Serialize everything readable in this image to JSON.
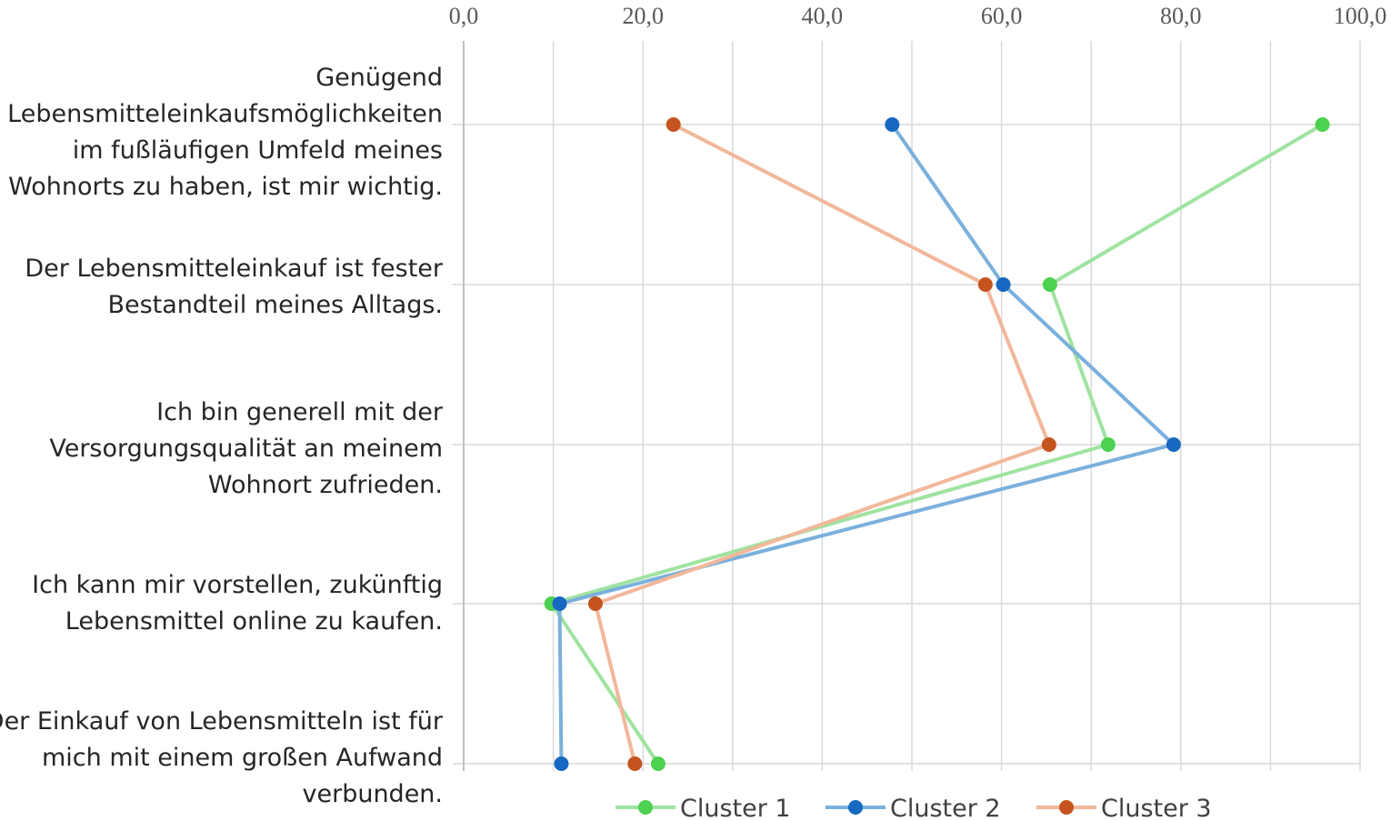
{
  "chart_data": {
    "type": "line",
    "orientation": "horizontal",
    "categories": [
      "Genügend Lebensmitteleinkaufsmöglichkeiten im fußläufigen Umfeld meines Wohnorts zu haben, ist mir wichtig.",
      "Der Lebensmitteleinkauf ist fester Bestandteil meines Alltags.",
      "Ich bin generell mit der Versorgungsqualität an meinem Wohnort zufrieden.",
      "Ich kann mir vorstellen, zukünftig Lebensmittel online zu kaufen.",
      "Der Einkauf von Lebensmitteln ist für mich mit einem großen Aufwand verbunden."
    ],
    "category_lines": [
      [
        "Genügend",
        "Lebensmitteleinkaufsmöglichkeiten",
        "im fußläufigen Umfeld meines",
        "Wohnorts zu haben, ist mir wichtig."
      ],
      [
        "Der Lebensmitteleinkauf ist fester",
        "Bestandteil meines Alltags."
      ],
      [
        "Ich bin generell mit der",
        "Versorgungsqualität an meinem",
        "Wohnort zufrieden."
      ],
      [
        "Ich kann mir vorstellen, zukünftig",
        "Lebensmittel online zu kaufen."
      ],
      [
        "Der Einkauf von Lebensmitteln ist für",
        "mich mit einem großen Aufwand",
        "verbunden."
      ]
    ],
    "series": [
      {
        "name": "Cluster 1",
        "color": "#9fe3a0",
        "marker_color": "#4cd150",
        "values": [
          95.8,
          65.4,
          71.9,
          9.8,
          21.7
        ]
      },
      {
        "name": "Cluster 2",
        "color": "#7ab0dc",
        "marker_color": "#1768c0",
        "values": [
          47.8,
          60.2,
          79.2,
          10.7,
          10.9
        ]
      },
      {
        "name": "Cluster 3",
        "color": "#f2b79a",
        "marker_color": "#c4531e",
        "values": [
          23.4,
          58.2,
          65.3,
          14.7,
          19.1
        ]
      }
    ],
    "xlim": [
      0,
      100
    ],
    "x_ticks": [
      "0,0",
      "20,0",
      "40,0",
      "60,0",
      "80,0",
      "100,0"
    ],
    "x_axis_position": "top",
    "grid": true,
    "legend_position": "bottom"
  }
}
